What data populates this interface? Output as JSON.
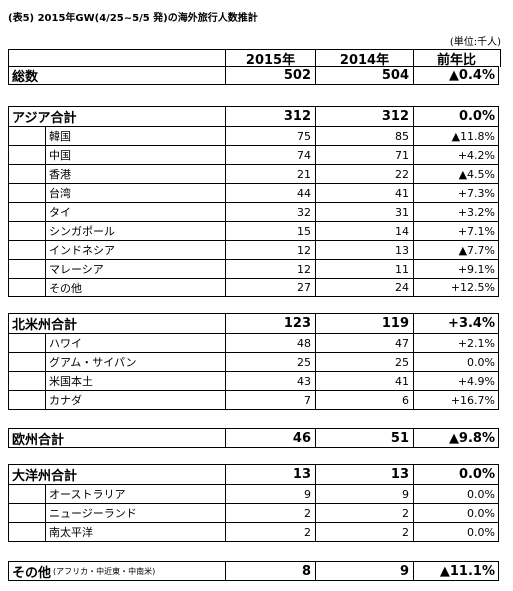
{
  "title": "(表5) 2015年GW(4/25~5/5 発)の海外旅行人数推計",
  "unit": "(単位:千人)",
  "headers": [
    "2015年",
    "2014年",
    "前年比"
  ],
  "total": {
    "name": "総数",
    "v2015": "502",
    "v2014": "504",
    "ratio": "▲0.4%"
  },
  "asia": {
    "total": {
      "name": "アジア合計",
      "v2015": "312",
      "v2014": "312",
      "ratio": "0.0%"
    },
    "rows": [
      {
        "name": "韓国",
        "v2015": "75",
        "v2014": "85",
        "ratio": "▲11.8%"
      },
      {
        "name": "中国",
        "v2015": "74",
        "v2014": "71",
        "ratio": "+4.2%"
      },
      {
        "name": "香港",
        "v2015": "21",
        "v2014": "22",
        "ratio": "▲4.5%"
      },
      {
        "name": "台湾",
        "v2015": "44",
        "v2014": "41",
        "ratio": "+7.3%"
      },
      {
        "name": "タイ",
        "v2015": "32",
        "v2014": "31",
        "ratio": "+3.2%"
      },
      {
        "name": "シンガポール",
        "v2015": "15",
        "v2014": "14",
        "ratio": "+7.1%"
      },
      {
        "name": "インドネシア",
        "v2015": "12",
        "v2014": "13",
        "ratio": "▲7.7%"
      },
      {
        "name": "マレーシア",
        "v2015": "12",
        "v2014": "11",
        "ratio": "+9.1%"
      },
      {
        "name": "その他",
        "v2015": "27",
        "v2014": "24",
        "ratio": "+12.5%"
      }
    ]
  },
  "namerica": {
    "total": {
      "name": "北米州合計",
      "v2015": "123",
      "v2014": "119",
      "ratio": "+3.4%"
    },
    "rows": [
      {
        "name": "ハワイ",
        "v2015": "48",
        "v2014": "47",
        "ratio": "+2.1%"
      },
      {
        "name": "グアム・サイパン",
        "v2015": "25",
        "v2014": "25",
        "ratio": "0.0%"
      },
      {
        "name": "米国本土",
        "v2015": "43",
        "v2014": "41",
        "ratio": "+4.9%"
      },
      {
        "name": "カナダ",
        "v2015": "7",
        "v2014": "6",
        "ratio": "+16.7%"
      }
    ]
  },
  "europe": {
    "name": "欧州合計",
    "v2015": "46",
    "v2014": "51",
    "ratio": "▲9.8%"
  },
  "oceania": {
    "total": {
      "name": "大洋州合計",
      "v2015": "13",
      "v2014": "13",
      "ratio": "0.0%"
    },
    "rows": [
      {
        "name": "オーストラリア",
        "v2015": "9",
        "v2014": "9",
        "ratio": "0.0%"
      },
      {
        "name": "ニュージーランド",
        "v2015": "2",
        "v2014": "2",
        "ratio": "0.0%"
      },
      {
        "name": "南太平洋",
        "v2015": "2",
        "v2014": "2",
        "ratio": "0.0%"
      }
    ]
  },
  "other": {
    "name": "その他",
    "note": "(アフリカ・中近東・中南米)",
    "v2015": "8",
    "v2014": "9",
    "ratio": "▲11.1%"
  }
}
